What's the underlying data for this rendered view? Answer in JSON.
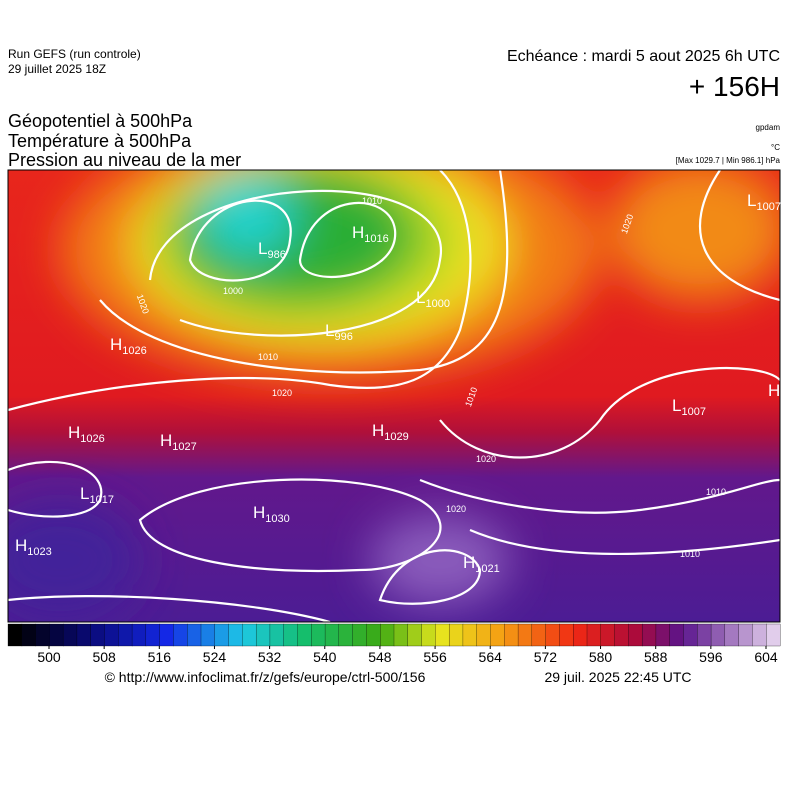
{
  "header": {
    "run": "Run GEFS (run controle)",
    "run_date": "29 juillet 2025 18Z",
    "valid": "Echéance : mardi 5 aout 2025 6h UTC",
    "lead": "+ 156H",
    "fields": [
      "Géopotentiel à 500hPa",
      "Température à 500hPa",
      "Pression au niveau de la mer"
    ],
    "units": [
      "gpdam",
      "°C",
      "[Max 1029.7 | Min 986.1] hPa"
    ]
  },
  "centers": [
    {
      "type": "H",
      "value": "1026"
    },
    {
      "type": "H",
      "value": "1026"
    },
    {
      "type": "H",
      "value": "1027"
    },
    {
      "type": "H",
      "value": "1029"
    },
    {
      "type": "L",
      "value": "1017"
    },
    {
      "type": "H",
      "value": "1030"
    },
    {
      "type": "H",
      "value": "1023"
    },
    {
      "type": "H",
      "value": "1021"
    },
    {
      "type": "L",
      "value": "986"
    },
    {
      "type": "H",
      "value": "1016"
    },
    {
      "type": "L",
      "value": "1000"
    },
    {
      "type": "L",
      "value": "996"
    },
    {
      "type": "L",
      "value": "1007"
    },
    {
      "type": "L",
      "value": "1007"
    },
    {
      "type": "H"
    }
  ],
  "isobar_labels": [
    "1010",
    "1000",
    "1020",
    "1010",
    "1020",
    "1020",
    "1020",
    "1010",
    "1010",
    "1010",
    "1020"
  ],
  "colorbar": {
    "ticks": [
      500,
      508,
      516,
      524,
      532,
      540,
      548,
      556,
      564,
      572,
      580,
      588,
      596,
      604
    ]
  },
  "footer": {
    "source": "© http://www.infoclimat.fr/z/gefs/europe/ctrl-500/156",
    "generated": "29 juil. 2025 22:45 UTC"
  }
}
